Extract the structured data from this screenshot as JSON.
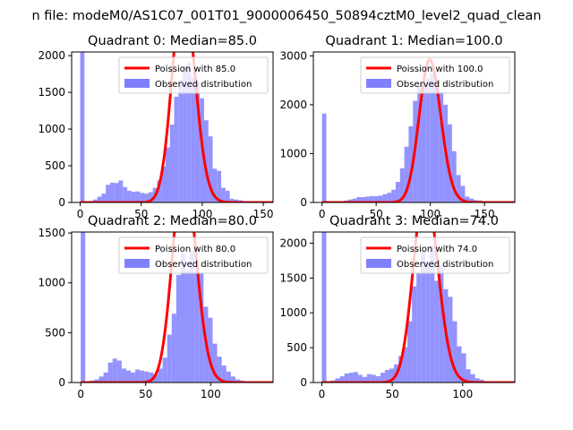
{
  "suptitle": "n file: modeM0/AS1C07_001T01_9000006450_50894cztM0_level2_quad_clean",
  "colors": {
    "hist": "#8080ff",
    "poisson": "#ff0000",
    "axis": "#000000",
    "background": "#ffffff"
  },
  "chart_data": [
    {
      "type": "bar",
      "title": "Quadrant 0: Median=85.0",
      "median": 85.0,
      "xlim": [
        -7,
        158
      ],
      "ylim": [
        0,
        2050
      ],
      "xticks": [
        0,
        50,
        100,
        150
      ],
      "yticks": [
        0,
        500,
        1000,
        1500,
        2000
      ],
      "bin_width": 3.5,
      "legend": [
        "Poission with 85.0",
        "Observed distribution"
      ],
      "hist_x": [
        0,
        3.5,
        7,
        10.5,
        14,
        17.5,
        21,
        24.5,
        28,
        31.5,
        35,
        38.5,
        42,
        45.5,
        49,
        52.5,
        56,
        59.5,
        63,
        66.5,
        70,
        73.5,
        77,
        80.5,
        84,
        87.5,
        91,
        94.5,
        98,
        101.5,
        105,
        108.5,
        112,
        115.5,
        119,
        122.5,
        126,
        129.5,
        133,
        136.5,
        140,
        143.5,
        147,
        150.5
      ],
      "hist_y": [
        2050,
        10,
        20,
        40,
        80,
        120,
        240,
        270,
        265,
        300,
        210,
        160,
        145,
        150,
        130,
        120,
        140,
        200,
        300,
        490,
        750,
        1060,
        1440,
        1670,
        1860,
        1910,
        1700,
        1640,
        1420,
        1120,
        900,
        460,
        430,
        200,
        160,
        50,
        40,
        30,
        20,
        10,
        5,
        3,
        2,
        1
      ],
      "poisson_mean": 85.0,
      "poisson_scale": 2920
    },
    {
      "type": "bar",
      "title": "Quadrant 1: Median=100.0",
      "median": 100.0,
      "xlim": [
        -8,
        178
      ],
      "ylim": [
        0,
        3080
      ],
      "xticks": [
        0,
        50,
        100,
        150
      ],
      "yticks": [
        0,
        1000,
        2000,
        3000
      ],
      "bin_width": 4,
      "legend": [
        "Poission with 100.0",
        "Observed distribution"
      ],
      "hist_x": [
        0,
        4,
        8,
        12,
        16,
        20,
        24,
        28,
        32,
        36,
        40,
        44,
        48,
        52,
        56,
        60,
        64,
        68,
        72,
        76,
        80,
        84,
        88,
        92,
        96,
        100,
        104,
        108,
        112,
        116,
        120,
        124,
        128,
        132,
        136,
        140,
        144,
        148,
        152,
        156,
        160,
        164,
        168
      ],
      "hist_y": [
        1820,
        5,
        5,
        10,
        20,
        40,
        60,
        80,
        110,
        110,
        120,
        130,
        130,
        140,
        170,
        200,
        260,
        420,
        700,
        1140,
        1560,
        2080,
        2400,
        2420,
        2540,
        2640,
        2500,
        2260,
        2000,
        1600,
        1050,
        560,
        340,
        120,
        80,
        50,
        40,
        20,
        10,
        5,
        3,
        2,
        1
      ],
      "poisson_mean": 100.0,
      "poisson_scale": 2920
    },
    {
      "type": "bar",
      "title": "Quadrant 2: Median=80.0",
      "median": 80.0,
      "xlim": [
        -7,
        148
      ],
      "ylim": [
        0,
        1510
      ],
      "xticks": [
        0,
        50,
        100
      ],
      "yticks": [
        0,
        500,
        1000,
        1500
      ],
      "bin_width": 3.5,
      "legend": [
        "Poission with 80.0",
        "Observed distribution"
      ],
      "hist_x": [
        0,
        3.5,
        7,
        10.5,
        14,
        17.5,
        21,
        24.5,
        28,
        31.5,
        35,
        38.5,
        42,
        45.5,
        49,
        52.5,
        56,
        59.5,
        63,
        66.5,
        70,
        73.5,
        77,
        80.5,
        84,
        87.5,
        91,
        94.5,
        98,
        101.5,
        105,
        108.5,
        112,
        115.5,
        119,
        122.5,
        126,
        129.5,
        133,
        136.5
      ],
      "hist_y": [
        1510,
        10,
        20,
        30,
        60,
        100,
        200,
        240,
        220,
        140,
        120,
        100,
        130,
        120,
        110,
        100,
        80,
        140,
        250,
        480,
        690,
        1080,
        1290,
        1120,
        1320,
        1120,
        1100,
        760,
        650,
        390,
        260,
        170,
        110,
        60,
        30,
        20,
        10,
        5,
        3,
        1
      ],
      "poisson_mean": 80.0,
      "poisson_scale": 2150
    },
    {
      "type": "bar",
      "title": "Quadrant 3: Median=74.0",
      "median": 74.0,
      "xlim": [
        -6,
        137
      ],
      "ylim": [
        0,
        2160
      ],
      "xticks": [
        0,
        50,
        100
      ],
      "yticks": [
        0,
        500,
        1000,
        1500,
        2000
      ],
      "bin_width": 3.2,
      "legend": [
        "Poission with 74.0",
        "Observed distribution"
      ],
      "hist_x": [
        0,
        3.2,
        6.4,
        9.6,
        12.8,
        16,
        19.2,
        22.4,
        25.6,
        28.8,
        32,
        35.2,
        38.4,
        41.6,
        44.8,
        48,
        51.2,
        54.4,
        57.6,
        60.8,
        64,
        67.2,
        70.4,
        73.6,
        76.8,
        80,
        83.2,
        86.4,
        89.6,
        92.8,
        96,
        99.2,
        102.4,
        105.6,
        108.8,
        112,
        115.2,
        118.4,
        121.6,
        124.8,
        128
      ],
      "hist_y": [
        2160,
        10,
        30,
        60,
        90,
        130,
        140,
        150,
        110,
        80,
        120,
        110,
        90,
        140,
        180,
        200,
        260,
        380,
        510,
        880,
        1380,
        1580,
        1900,
        1740,
        1960,
        1460,
        1680,
        1340,
        1230,
        880,
        520,
        420,
        190,
        120,
        60,
        40,
        20,
        10,
        5,
        3,
        1
      ],
      "poisson_mean": 74.0,
      "poisson_scale": 2780
    }
  ]
}
